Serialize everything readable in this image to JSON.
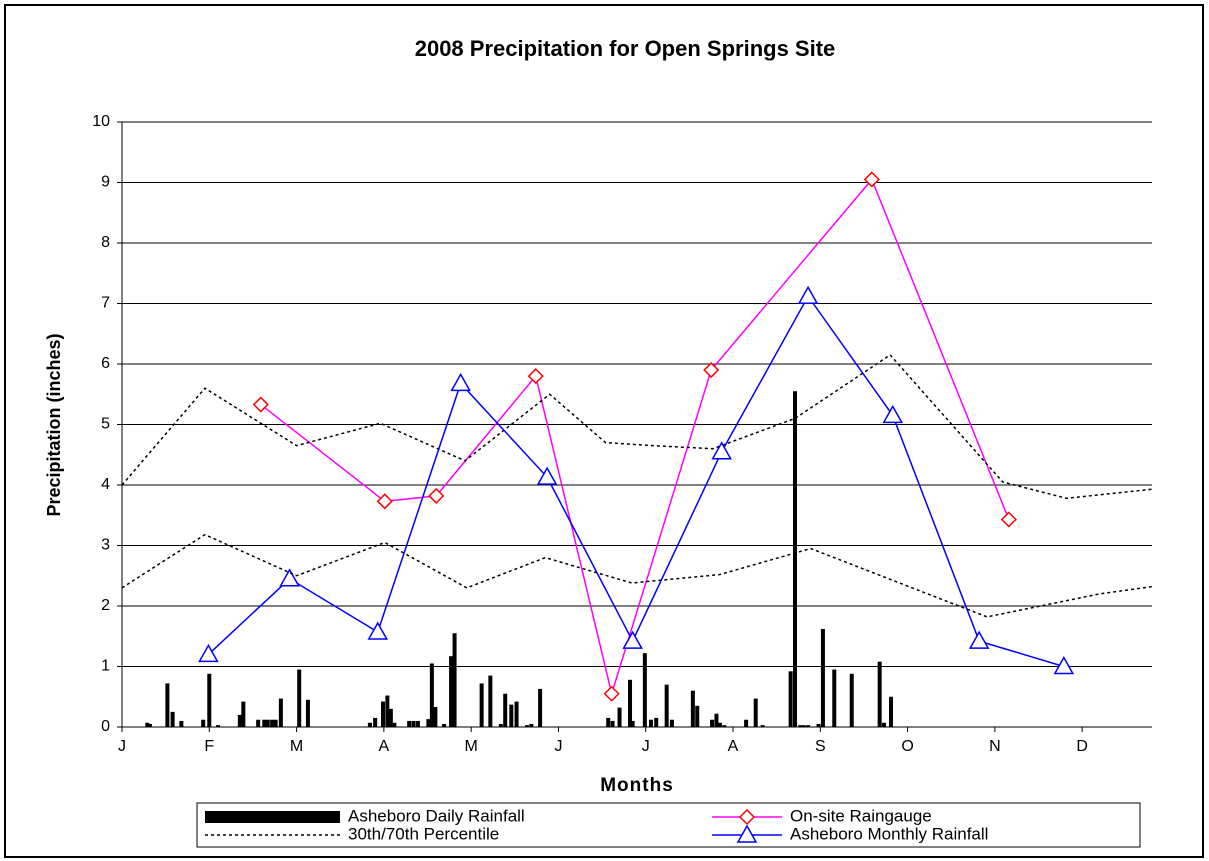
{
  "chart_data": {
    "type": "line",
    "title": "2008 Precipitation for Open Springs Site",
    "x_label": "Months",
    "y_label": "Precipitation (inches)",
    "xlim": [
      0,
      11.8
    ],
    "xticks": [
      {
        "value": 0,
        "label": "J"
      },
      {
        "value": 1,
        "label": "F"
      },
      {
        "value": 2,
        "label": "M"
      },
      {
        "value": 3,
        "label": "A"
      },
      {
        "value": 4,
        "label": "M"
      },
      {
        "value": 5,
        "label": "J"
      },
      {
        "value": 6,
        "label": "J"
      },
      {
        "value": 7,
        "label": "A"
      },
      {
        "value": 8,
        "label": "S"
      },
      {
        "value": 9,
        "label": "O"
      },
      {
        "value": 10,
        "label": "N"
      },
      {
        "value": 11,
        "label": "D"
      }
    ],
    "ylim": [
      0,
      10
    ],
    "yticks": [
      0,
      1,
      2,
      3,
      4,
      5,
      6,
      7,
      8,
      9,
      10
    ],
    "grid": true,
    "legend": "bottom",
    "series": [
      {
        "name": "Asheboro Daily Rainfall",
        "type": "bar",
        "color": "#000000",
        "x": [
          0.29,
          0.32,
          0.52,
          0.58,
          0.68,
          0.93,
          1.0,
          1.1,
          1.35,
          1.39,
          1.56,
          1.63,
          1.67,
          1.72,
          1.76,
          1.82,
          2.03,
          2.13,
          2.84,
          2.9,
          2.99,
          3.04,
          3.08,
          3.12,
          3.29,
          3.34,
          3.39,
          3.51,
          3.55,
          3.59,
          3.69,
          3.77,
          3.81,
          4.12,
          4.22,
          4.34,
          4.39,
          4.46,
          4.52,
          4.64,
          4.69,
          4.79,
          5.57,
          5.62,
          5.7,
          5.82,
          5.85,
          5.99,
          6.06,
          6.12,
          6.24,
          6.3,
          6.54,
          6.59,
          6.76,
          6.81,
          6.85,
          6.9,
          7.15,
          7.26,
          7.34,
          7.66,
          7.71,
          7.77,
          7.81,
          7.86,
          7.98,
          8.03,
          8.16,
          8.36,
          8.68,
          8.73,
          8.81
        ],
        "values": [
          0.07,
          0.05,
          0.72,
          0.25,
          0.1,
          0.12,
          0.88,
          0.03,
          0.2,
          0.42,
          0.12,
          0.12,
          0.12,
          0.12,
          0.12,
          0.47,
          0.95,
          0.45,
          0.07,
          0.15,
          0.42,
          0.52,
          0.3,
          0.07,
          0.1,
          0.1,
          0.1,
          0.13,
          1.05,
          0.33,
          0.05,
          1.17,
          1.55,
          0.72,
          0.85,
          0.05,
          0.55,
          0.37,
          0.42,
          0.03,
          0.05,
          0.63,
          0.15,
          0.1,
          0.32,
          0.78,
          0.1,
          1.22,
          0.12,
          0.15,
          0.7,
          0.12,
          0.6,
          0.35,
          0.12,
          0.22,
          0.07,
          0.03,
          0.12,
          0.47,
          0.03,
          0.92,
          5.55,
          0.03,
          0.03,
          0.03,
          0.05,
          1.62,
          0.95,
          0.88,
          1.08,
          0.07,
          0.5
        ]
      },
      {
        "name": "On-site Raingauge",
        "type": "line",
        "marker": "diamond",
        "color": "#ff00ff",
        "marker_color": "#ff0000",
        "x": [
          1.59,
          3.01,
          3.6,
          4.74,
          5.61,
          6.75,
          8.59,
          10.16
        ],
        "values": [
          5.33,
          3.73,
          3.82,
          5.8,
          0.55,
          5.9,
          9.05,
          3.43
        ]
      },
      {
        "name": "30th/70th Percentile",
        "type": "line",
        "dash": true,
        "color": "#000000",
        "x": [
          0,
          0.95,
          2.0,
          2.96,
          3.93,
          4.9,
          5.54,
          6.09,
          6.77,
          7.71,
          8.8,
          10.09,
          10.82,
          11.8
        ],
        "values": [
          4.0,
          5.6,
          4.65,
          5.02,
          4.4,
          5.5,
          4.7,
          4.65,
          4.6,
          5.1,
          6.15,
          4.05,
          3.78,
          3.93
        ]
      },
      {
        "name": "Asheboro Monthly Rainfall",
        "type": "line",
        "marker": "triangle",
        "color": "#0000ff",
        "marker_color": "#0000ff",
        "x": [
          0.99,
          1.92,
          2.93,
          3.88,
          4.87,
          5.85,
          6.87,
          7.86,
          8.83,
          9.82,
          10.79
        ],
        "values": [
          1.2,
          2.45,
          1.57,
          5.68,
          4.13,
          1.42,
          4.55,
          7.12,
          5.15,
          1.42,
          1.0
        ]
      },
      {
        "type": "line",
        "dash": true,
        "color": "#000000",
        "x": [
          0,
          0.95,
          2.0,
          3.01,
          3.95,
          4.85,
          5.84,
          6.85,
          7.89,
          9.91,
          11.2,
          11.8
        ],
        "values": [
          2.3,
          3.18,
          2.5,
          3.05,
          2.3,
          2.8,
          2.38,
          2.52,
          2.95,
          1.82,
          2.2,
          2.32
        ]
      }
    ]
  }
}
